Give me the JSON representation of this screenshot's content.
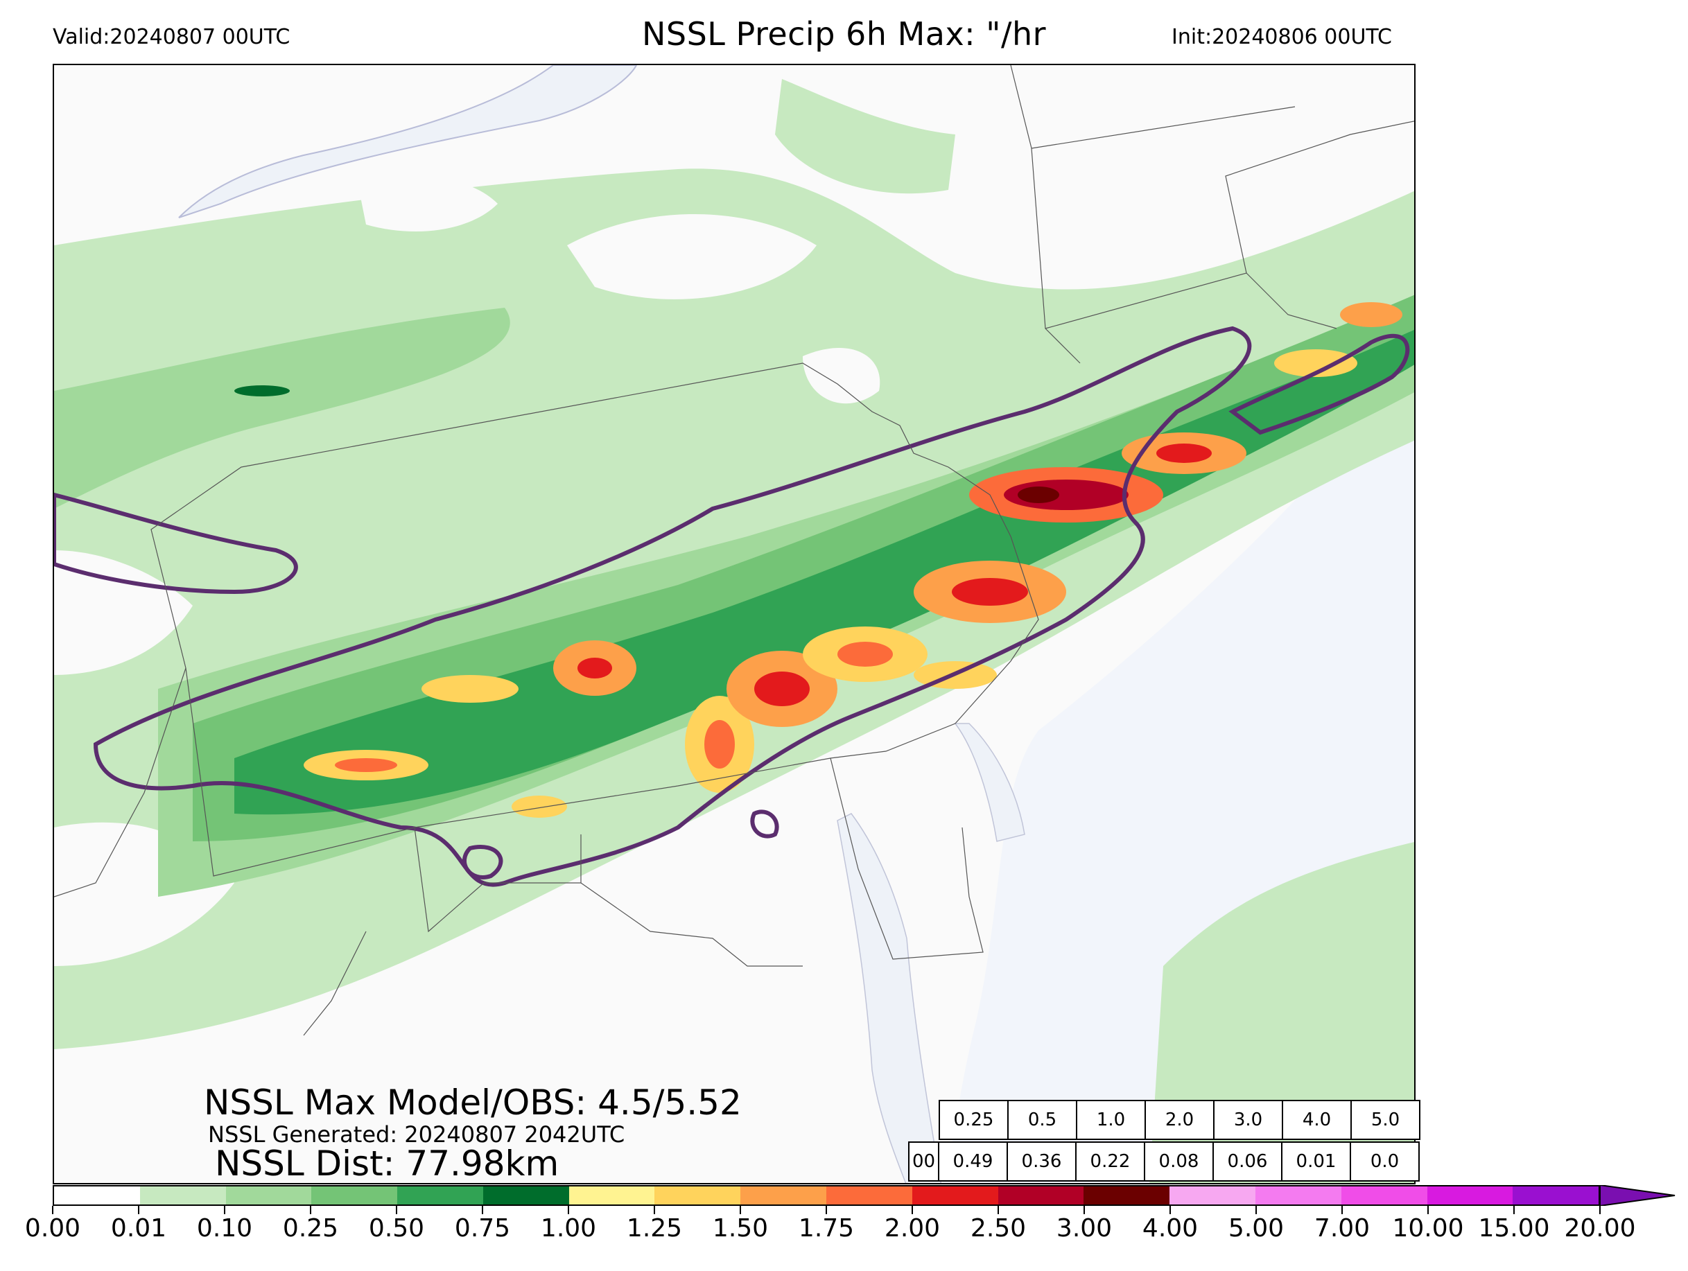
{
  "header": {
    "valid": "Valid:20240807 00UTC",
    "title": "NSSL Precip 6h Max: \"/hr",
    "init": "Init:20240806 00UTC"
  },
  "stats": {
    "max_model_obs": "NSSL Max Model/OBS: 4.5/5.52",
    "generated": "NSSL Generated: 20240807 2042UTC",
    "dist": "NSSL Dist: 77.98km"
  },
  "score_table": {
    "thresholds": [
      "0.25",
      "0.5",
      "1.0",
      "2.0",
      "3.0",
      "4.0",
      "5.0"
    ],
    "values": [
      "00",
      "0.49",
      "0.36",
      "0.22",
      "0.08",
      "0.06",
      "0.01",
      "0.0"
    ]
  },
  "colorbar": {
    "ticks": [
      "0.00",
      "0.01",
      "0.10",
      "0.25",
      "0.50",
      "0.75",
      "1.00",
      "1.25",
      "1.50",
      "1.75",
      "2.00",
      "2.50",
      "3.00",
      "4.00",
      "5.00",
      "7.00",
      "10.00",
      "15.00",
      "20.00"
    ],
    "colors": [
      "#ffffff",
      "#c7e9c0",
      "#a1d99b",
      "#74c476",
      "#31a354",
      "#006d2c",
      "#fff391",
      "#ffd35c",
      "#fda04a",
      "#fc6b3a",
      "#e31a1c",
      "#b10026",
      "#6b0000",
      "#f7a8f1",
      "#f47bf0",
      "#f04de8",
      "#d81ae0",
      "#9a10d0"
    ],
    "extend_color": "#7a0fb0"
  },
  "map": {
    "water_color": "#eef2f8",
    "contour_color": "#5b2d6e",
    "state_line_color": "#555555"
  }
}
